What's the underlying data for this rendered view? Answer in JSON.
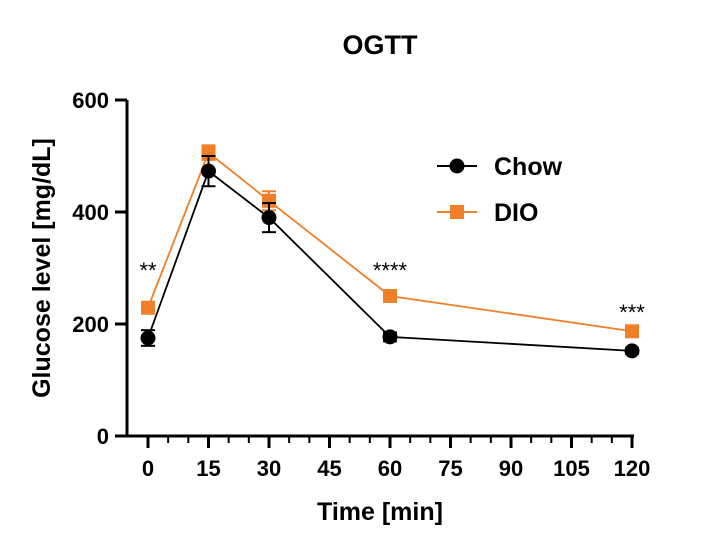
{
  "chart_data": {
    "type": "line",
    "title": "OGTT",
    "xlabel": "Time [min]",
    "ylabel": "Glucose level [mg/dL]",
    "xlim": [
      0,
      120
    ],
    "ylim": [
      0,
      600
    ],
    "xticks": [
      "0",
      "15",
      "30",
      "45",
      "60",
      "75",
      "90",
      "105",
      "120"
    ],
    "xtick_values": [
      0,
      15,
      30,
      45,
      60,
      75,
      90,
      105,
      120
    ],
    "yticks": [
      "0",
      "200",
      "400",
      "600"
    ],
    "ytick_values": [
      0,
      200,
      400,
      600
    ],
    "grid": false,
    "legend_position": "top-right",
    "x": [
      0,
      15,
      30,
      60,
      120
    ],
    "series": [
      {
        "name": "Chow",
        "color": "#000000",
        "marker": "circle",
        "values": [
          175,
          473,
          390,
          177,
          152
        ],
        "errors": [
          14,
          27,
          26,
          8,
          5
        ]
      },
      {
        "name": "DIO",
        "color": "#f07f2a",
        "marker": "square",
        "values": [
          229,
          506,
          420,
          250,
          187
        ],
        "errors": [
          6,
          13,
          17,
          6,
          5
        ]
      }
    ],
    "annotations": [
      {
        "x": 0,
        "y": 300,
        "text": "**"
      },
      {
        "x": 60,
        "y": 300,
        "text": "****"
      },
      {
        "x": 120,
        "y": 225,
        "text": "***"
      }
    ]
  }
}
